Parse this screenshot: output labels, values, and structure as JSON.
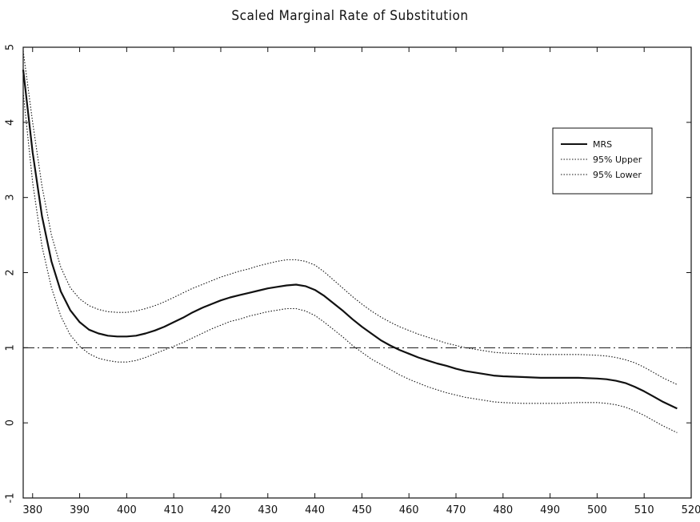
{
  "chart_data": {
    "type": "line",
    "title": "Scaled Marginal Rate of Substitution",
    "xlabel": "",
    "ylabel": "",
    "xlim": [
      378,
      520
    ],
    "ylim": [
      -1,
      5
    ],
    "xticks": [
      380,
      390,
      400,
      410,
      420,
      430,
      440,
      450,
      460,
      470,
      480,
      490,
      500,
      510,
      520
    ],
    "yticks": [
      -1,
      0,
      1,
      2,
      3,
      4,
      5
    ],
    "grid": false,
    "legend": {
      "position": "upper-right"
    },
    "reference_line": {
      "y": 1,
      "style": "dash-dot"
    },
    "series": [
      {
        "name": "MRS",
        "style": "solid",
        "x": [
          378,
          380,
          382,
          384,
          386,
          388,
          390,
          392,
          394,
          396,
          398,
          400,
          402,
          404,
          406,
          408,
          410,
          412,
          414,
          416,
          418,
          420,
          422,
          424,
          426,
          428,
          430,
          432,
          434,
          436,
          438,
          440,
          442,
          444,
          446,
          448,
          450,
          452,
          454,
          456,
          458,
          460,
          462,
          464,
          466,
          468,
          470,
          472,
          474,
          476,
          478,
          480,
          484,
          488,
          492,
          496,
          500,
          502,
          504,
          506,
          508,
          510,
          512,
          514,
          517
        ],
        "y": [
          4.7,
          3.6,
          2.75,
          2.15,
          1.75,
          1.5,
          1.34,
          1.24,
          1.19,
          1.16,
          1.15,
          1.15,
          1.16,
          1.19,
          1.23,
          1.28,
          1.34,
          1.4,
          1.47,
          1.53,
          1.58,
          1.63,
          1.67,
          1.7,
          1.73,
          1.76,
          1.79,
          1.81,
          1.83,
          1.84,
          1.82,
          1.77,
          1.69,
          1.59,
          1.49,
          1.38,
          1.28,
          1.19,
          1.1,
          1.03,
          0.97,
          0.92,
          0.87,
          0.83,
          0.79,
          0.76,
          0.72,
          0.69,
          0.67,
          0.65,
          0.63,
          0.62,
          0.61,
          0.6,
          0.6,
          0.6,
          0.59,
          0.58,
          0.56,
          0.53,
          0.48,
          0.42,
          0.35,
          0.28,
          0.19
        ]
      },
      {
        "name": "95% Upper",
        "style": "dotted",
        "x": [
          378,
          380,
          382,
          384,
          386,
          388,
          390,
          392,
          394,
          396,
          398,
          400,
          402,
          404,
          406,
          408,
          410,
          412,
          414,
          416,
          418,
          420,
          422,
          424,
          426,
          428,
          430,
          432,
          434,
          436,
          438,
          440,
          442,
          444,
          446,
          448,
          450,
          452,
          454,
          456,
          458,
          460,
          462,
          464,
          466,
          468,
          470,
          472,
          474,
          476,
          478,
          480,
          484,
          488,
          492,
          496,
          500,
          502,
          504,
          506,
          508,
          510,
          512,
          514,
          517
        ],
        "y": [
          4.95,
          4.0,
          3.15,
          2.5,
          2.07,
          1.8,
          1.65,
          1.56,
          1.51,
          1.48,
          1.47,
          1.47,
          1.49,
          1.52,
          1.56,
          1.61,
          1.67,
          1.73,
          1.79,
          1.84,
          1.89,
          1.94,
          1.98,
          2.02,
          2.05,
          2.09,
          2.12,
          2.15,
          2.17,
          2.17,
          2.15,
          2.1,
          2.01,
          1.9,
          1.79,
          1.68,
          1.58,
          1.49,
          1.41,
          1.34,
          1.28,
          1.23,
          1.18,
          1.14,
          1.1,
          1.06,
          1.03,
          1.0,
          0.98,
          0.96,
          0.94,
          0.93,
          0.92,
          0.91,
          0.91,
          0.91,
          0.9,
          0.89,
          0.87,
          0.84,
          0.8,
          0.74,
          0.67,
          0.6,
          0.51
        ]
      },
      {
        "name": "95% Lower",
        "style": "dotted",
        "x": [
          378,
          380,
          382,
          384,
          386,
          388,
          390,
          392,
          394,
          396,
          398,
          400,
          402,
          404,
          406,
          408,
          410,
          412,
          414,
          416,
          418,
          420,
          422,
          424,
          426,
          428,
          430,
          432,
          434,
          436,
          438,
          440,
          442,
          444,
          446,
          448,
          450,
          452,
          454,
          456,
          458,
          460,
          462,
          464,
          466,
          468,
          470,
          472,
          474,
          476,
          478,
          480,
          484,
          488,
          492,
          496,
          500,
          502,
          504,
          506,
          508,
          510,
          512,
          514,
          517
        ],
        "y": [
          4.4,
          3.2,
          2.35,
          1.8,
          1.42,
          1.17,
          1.02,
          0.92,
          0.86,
          0.83,
          0.81,
          0.81,
          0.83,
          0.87,
          0.92,
          0.97,
          1.02,
          1.07,
          1.13,
          1.19,
          1.25,
          1.3,
          1.35,
          1.38,
          1.42,
          1.45,
          1.48,
          1.5,
          1.52,
          1.52,
          1.49,
          1.43,
          1.34,
          1.24,
          1.14,
          1.03,
          0.94,
          0.85,
          0.78,
          0.71,
          0.64,
          0.58,
          0.53,
          0.48,
          0.44,
          0.4,
          0.37,
          0.34,
          0.32,
          0.3,
          0.28,
          0.27,
          0.26,
          0.26,
          0.26,
          0.27,
          0.27,
          0.26,
          0.24,
          0.21,
          0.16,
          0.1,
          0.03,
          -0.04,
          -0.13
        ]
      }
    ]
  }
}
